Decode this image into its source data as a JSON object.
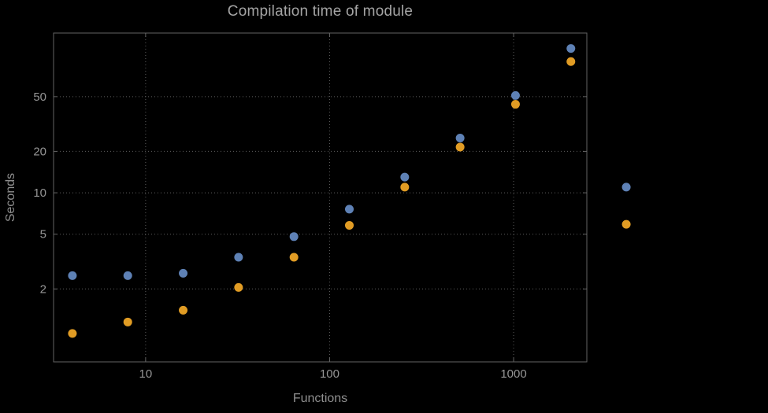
{
  "title": "Compilation time of module",
  "colors": {
    "background": "#000000",
    "frame": "#636363",
    "grid": "#5d5d5d",
    "tick_text": "#969696",
    "axis_label_text": "#8f8f8f",
    "title_text": "#a4a4a4",
    "series_blue": "#5e81b5",
    "series_orange": "#e19c24"
  },
  "chart_data": {
    "type": "scatter",
    "title": "Compilation time of module",
    "xlabel": "Functions",
    "ylabel": "Seconds",
    "x_scale": "log",
    "y_scale": "log",
    "xlim": [
      3.16,
      2500
    ],
    "ylim": [
      0.59,
      145
    ],
    "grid": "dotted",
    "legend": "none",
    "x_ticks": [
      {
        "value": 10,
        "label": "10"
      },
      {
        "value": 100,
        "label": "100"
      },
      {
        "value": 1000,
        "label": "1000"
      }
    ],
    "y_ticks": [
      {
        "value": 2,
        "label": "2"
      },
      {
        "value": 5,
        "label": "5"
      },
      {
        "value": 10,
        "label": "10"
      },
      {
        "value": 20,
        "label": "20"
      },
      {
        "value": 50,
        "label": "50"
      }
    ],
    "x": [
      4,
      8,
      16,
      32,
      64,
      128,
      256,
      512,
      1024,
      2048,
      4096
    ],
    "series": [
      {
        "name": "series-1-blue",
        "color": "#5e81b5",
        "values": [
          2.5,
          2.5,
          2.6,
          3.4,
          4.8,
          7.6,
          13,
          25,
          51,
          112,
          11
        ]
      },
      {
        "name": "series-2-orange",
        "color": "#e19c24",
        "values": [
          0.95,
          1.15,
          1.4,
          2.05,
          3.4,
          5.8,
          11,
          21.5,
          44,
          90,
          5.9
        ]
      }
    ]
  }
}
